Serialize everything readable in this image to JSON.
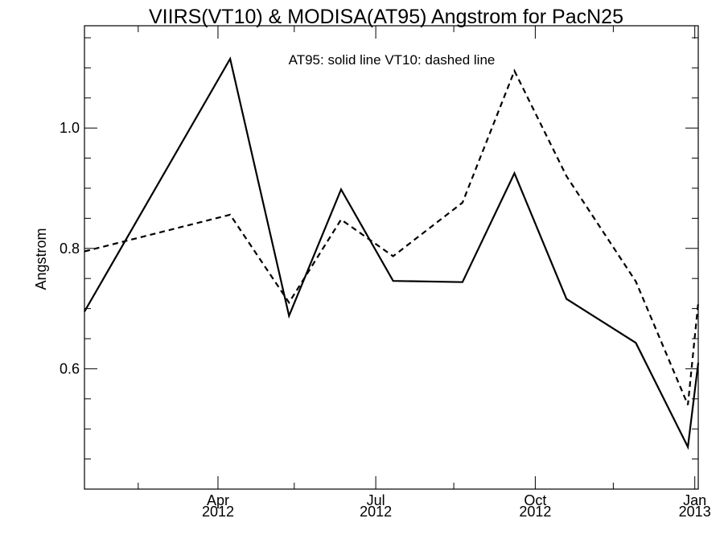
{
  "chart_data": {
    "type": "line",
    "title": "VIIRS(VT10) & MODISA(AT95)  Angstrom for PacN25",
    "annotation": "AT95: solid line   VT10: dashed line",
    "xlabel": "",
    "ylabel": "Angstrom",
    "x_axis": "date",
    "xlim": [
      "2012-01-15",
      "2013-01-03"
    ],
    "ylim": [
      0.4,
      1.17
    ],
    "x_ticks": [
      {
        "date": "2012-04-01",
        "month": "Apr",
        "year": "2012"
      },
      {
        "date": "2012-07-01",
        "month": "Jul",
        "year": "2012"
      },
      {
        "date": "2012-10-01",
        "month": "Oct",
        "year": "2012"
      },
      {
        "date": "2013-01-01",
        "month": "Jan",
        "year": "2013"
      }
    ],
    "x_minor_ticks": [
      "2012-02-15",
      "2012-05-15",
      "2012-08-15",
      "2012-11-15"
    ],
    "y_ticks": [
      0.6,
      0.8,
      1.0
    ],
    "y_minor_ticks": [
      0.45,
      0.5,
      0.55,
      0.65,
      0.7,
      0.75,
      0.85,
      0.9,
      0.95,
      1.05,
      1.1,
      1.15
    ],
    "grid": false,
    "series": [
      {
        "name": "AT95",
        "style": "solid",
        "color": "#000000",
        "x": [
          "2012-01-15",
          "2012-04-08",
          "2012-05-12",
          "2012-06-11",
          "2012-07-11",
          "2012-08-20",
          "2012-09-19",
          "2012-10-19",
          "2012-11-28",
          "2012-12-28",
          "2013-01-03"
        ],
        "y": [
          0.695,
          1.115,
          0.688,
          0.898,
          0.746,
          0.744,
          0.925,
          0.716,
          0.643,
          0.47,
          0.61
        ]
      },
      {
        "name": "VT10",
        "style": "dashed",
        "color": "#000000",
        "x": [
          "2012-01-15",
          "2012-04-08",
          "2012-05-12",
          "2012-06-11",
          "2012-07-11",
          "2012-08-20",
          "2012-09-19",
          "2012-10-19",
          "2012-11-28",
          "2012-12-28",
          "2013-01-03"
        ],
        "y": [
          0.795,
          0.856,
          0.71,
          0.848,
          0.787,
          0.876,
          1.095,
          0.92,
          0.745,
          0.54,
          0.71
        ]
      }
    ]
  }
}
